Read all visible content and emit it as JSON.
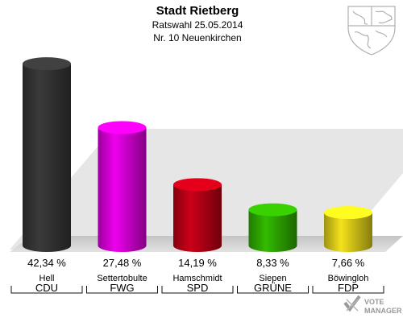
{
  "header": {
    "title": "Stadt Rietberg",
    "subtitle": "Ratswahl 25.05.2014",
    "district": "Nr. 10 Neuenkirchen"
  },
  "chart_data": {
    "type": "bar",
    "title": "Stadt Rietberg",
    "subtitle": "Ratswahl 25.05.2014 / Nr. 10 Neuenkirchen",
    "categories": [
      "CDU",
      "FWG",
      "SPD",
      "GRÜNE",
      "FDP"
    ],
    "candidates": [
      "Hell",
      "Settertobulte",
      "Hamschmidt",
      "Siepen",
      "Böwingloh"
    ],
    "values": [
      42.34,
      27.48,
      14.19,
      8.33,
      7.66
    ],
    "value_labels": [
      "42,34 %",
      "27,48 %",
      "14,19 %",
      "8,33 %",
      "7,66 %"
    ],
    "colors": [
      "#3a3a3a",
      "#ee00ee",
      "#cc0018",
      "#33bb00",
      "#f3e21c"
    ],
    "unit": "%",
    "ylim": [
      0,
      45
    ],
    "grid": false,
    "legend": "none"
  },
  "watermark": {
    "line1": "VOTE",
    "line2": "MANAGER"
  }
}
